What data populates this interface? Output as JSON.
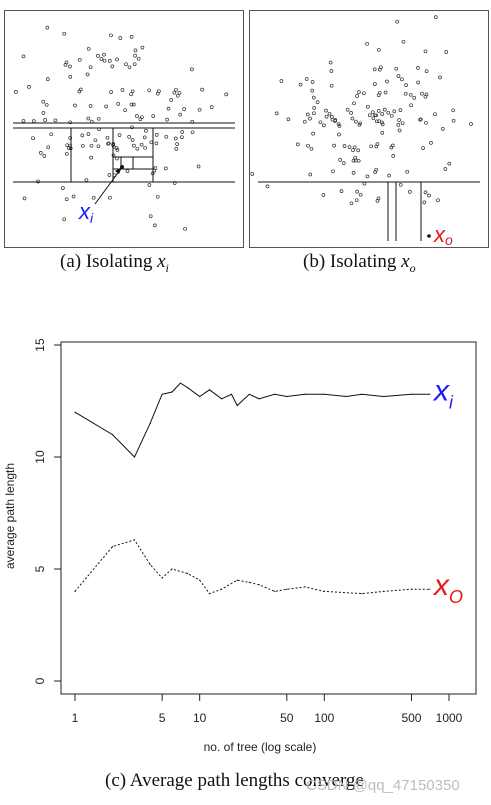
{
  "panel_a": {
    "caption_prefix": "(a) Isolating",
    "caption_var": "x",
    "caption_sub": "i",
    "point_label": "x",
    "point_label_sub": "i",
    "label_color": "#1a1aff"
  },
  "panel_b": {
    "caption_prefix": "(b) Isolating",
    "caption_var": "x",
    "caption_sub": "o",
    "point_label": "x",
    "point_label_sub": "o",
    "label_color": "#e41a1c"
  },
  "panel_c_caption": "(c) Average path lengths converge",
  "watermark": "CSDN @qq_47150350",
  "chart_data": {
    "type": "line",
    "xlabel": "no. of tree (log scale)",
    "ylabel": "average path length",
    "x_scale": "log",
    "xlim": [
      1,
      1000
    ],
    "ylim": [
      0,
      15
    ],
    "x_ticks": [
      1,
      5,
      10,
      50,
      100,
      500,
      1000
    ],
    "x_tick_labels": [
      "1",
      "5",
      "10",
      "50",
      "100",
      "500",
      "1000"
    ],
    "y_ticks": [
      0,
      5,
      10,
      15
    ],
    "y_tick_labels": [
      "0",
      "5",
      "10",
      "15"
    ],
    "series": [
      {
        "name": "x_i",
        "label": "x",
        "label_sub": "i",
        "label_color": "#1a1aff",
        "style": "solid",
        "points": [
          [
            1,
            12.0
          ],
          [
            2,
            11.0
          ],
          [
            3,
            10.0
          ],
          [
            4,
            11.5
          ],
          [
            5,
            12.8
          ],
          [
            6,
            12.9
          ],
          [
            7,
            13.3
          ],
          [
            8,
            13.1
          ],
          [
            10,
            12.7
          ],
          [
            12,
            13.0
          ],
          [
            15,
            12.6
          ],
          [
            18,
            12.8
          ],
          [
            20,
            12.3
          ],
          [
            25,
            12.8
          ],
          [
            30,
            12.6
          ],
          [
            40,
            12.8
          ],
          [
            50,
            12.7
          ],
          [
            70,
            12.8
          ],
          [
            100,
            12.8
          ],
          [
            150,
            12.7
          ],
          [
            200,
            12.8
          ],
          [
            300,
            12.7
          ],
          [
            500,
            12.8
          ],
          [
            700,
            12.8
          ]
        ]
      },
      {
        "name": "x_o",
        "label": "x",
        "label_sub": "O",
        "label_color": "#e41a1c",
        "style": "dashed",
        "points": [
          [
            1,
            4.0
          ],
          [
            2,
            6.0
          ],
          [
            3,
            6.3
          ],
          [
            4,
            5.2
          ],
          [
            5,
            4.6
          ],
          [
            6,
            5.0
          ],
          [
            8,
            4.8
          ],
          [
            10,
            4.5
          ],
          [
            12,
            3.9
          ],
          [
            15,
            4.1
          ],
          [
            20,
            4.5
          ],
          [
            25,
            4.4
          ],
          [
            30,
            4.3
          ],
          [
            40,
            4.0
          ],
          [
            50,
            4.1
          ],
          [
            70,
            4.2
          ],
          [
            100,
            4.0
          ],
          [
            200,
            3.9
          ],
          [
            300,
            4.0
          ],
          [
            500,
            4.1
          ],
          [
            700,
            4.1
          ]
        ]
      }
    ]
  }
}
